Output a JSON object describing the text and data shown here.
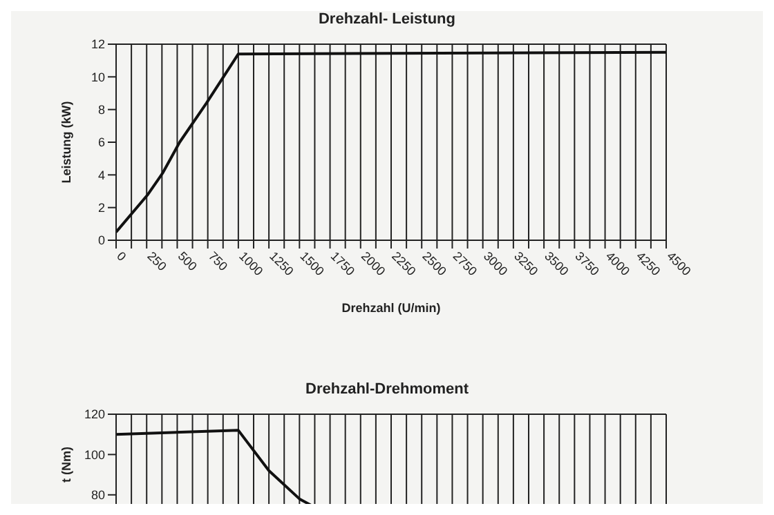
{
  "chart_data": [
    {
      "type": "line",
      "title": "Drehzahl- Leistung",
      "xlabel": "Drehzahl (U/min)",
      "ylabel": "Leistung (kW)",
      "x": [
        0,
        260,
        380,
        520,
        740,
        1000,
        4500
      ],
      "series": [
        {
          "color": "#111111",
          "values": [
            0.5,
            2.8,
            4.1,
            6,
            8.4,
            11.4,
            11.5
          ]
        }
      ],
      "xlim": [
        0,
        4500
      ],
      "xticks": [
        0,
        {
          "value": 125,
          "label": null
        },
        250,
        {
          "value": 375,
          "label": null
        },
        500,
        {
          "value": 625,
          "label": null
        },
        750,
        {
          "value": 875,
          "label": null
        },
        1000,
        {
          "value": 1125,
          "label": null
        },
        1250,
        {
          "value": 1375,
          "label": null
        },
        1500,
        {
          "value": 1625,
          "label": null
        },
        1750,
        {
          "value": 1875,
          "label": null
        },
        2000,
        {
          "value": 2125,
          "label": null
        },
        2250,
        {
          "value": 2375,
          "label": null
        },
        2500,
        {
          "value": 2625,
          "label": null
        },
        2750,
        {
          "value": 2875,
          "label": null
        },
        3000,
        {
          "value": 3125,
          "label": null
        },
        3250,
        {
          "value": 3375,
          "label": null
        },
        3500,
        {
          "value": 3625,
          "label": null
        },
        3750,
        {
          "value": 3875,
          "label": null
        },
        4000,
        {
          "value": 4125,
          "label": null
        },
        4250,
        {
          "value": 4375,
          "label": null
        },
        4500
      ],
      "ylim": [
        0,
        12
      ],
      "yticks": [
        0,
        2,
        4,
        6,
        8,
        10,
        12
      ],
      "grid": true,
      "legend": false,
      "marker": "none",
      "line_style": "solid"
    },
    {
      "type": "line",
      "title": "Drehzahl-Drehmoment",
      "ylabel": "t (Nm)",
      "x": [
        0,
        1000,
        1250,
        1500,
        1650
      ],
      "series": [
        {
          "color": "#111111",
          "values": [
            110,
            112,
            92,
            78,
            73
          ]
        }
      ],
      "xlim": [
        0,
        4500
      ],
      "xticks": [
        0,
        125,
        250,
        375,
        500,
        625,
        750,
        875,
        1000,
        1125,
        1250,
        1375,
        1500,
        1625,
        1750,
        1875,
        2000,
        2125,
        2250,
        2375,
        2500,
        2625,
        2750,
        2875,
        3000,
        3125,
        3250,
        3375,
        3500,
        3625,
        3750,
        3875,
        4000,
        4125,
        4250,
        4375,
        4500
      ],
      "ylim": [
        70,
        120
      ],
      "yticks": [
        80,
        100,
        120
      ],
      "tick_labels": "y",
      "grid": true,
      "legend": false,
      "marker": "none",
      "line_style": "solid"
    }
  ]
}
